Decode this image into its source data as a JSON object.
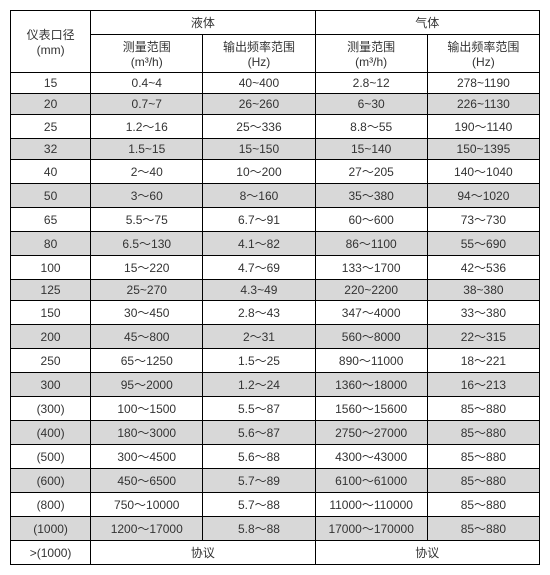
{
  "header": {
    "diameter_label": "仪表口径",
    "diameter_unit": "(mm)",
    "liquid": "液体",
    "gas": "气体",
    "measure_range": "测量范围",
    "measure_unit": "(m³/h)",
    "freq_range": "输出频率范围",
    "freq_unit": "(Hz)"
  },
  "rows": [
    {
      "dia": "15",
      "lr": "0.4~4",
      "lf": "40~400",
      "gr": "2.8~12",
      "gf": "278~1190",
      "alt": false
    },
    {
      "dia": "20",
      "lr": "0.7~7",
      "lf": "26~260",
      "gr": "6~30",
      "gf": "226~1130",
      "alt": true
    },
    {
      "dia": "25",
      "lr": "1.2～16",
      "lf": "25～336",
      "gr": "8.8～55",
      "gf": "190～1140",
      "alt": false
    },
    {
      "dia": "32",
      "lr": "1.5~15",
      "lf": "15~150",
      "gr": "15~140",
      "gf": "150~1395",
      "alt": true
    },
    {
      "dia": "40",
      "lr": "2～40",
      "lf": "10～200",
      "gr": "27～205",
      "gf": "140～1040",
      "alt": false
    },
    {
      "dia": "50",
      "lr": "3～60",
      "lf": "8～160",
      "gr": "35～380",
      "gf": "94～1020",
      "alt": true
    },
    {
      "dia": "65",
      "lr": "5.5～75",
      "lf": "6.7～91",
      "gr": "60～600",
      "gf": "73～730",
      "alt": false
    },
    {
      "dia": "80",
      "lr": "6.5～130",
      "lf": "4.1～82",
      "gr": "86～1100",
      "gf": "55～690",
      "alt": true
    },
    {
      "dia": "100",
      "lr": "15～220",
      "lf": "4.7～69",
      "gr": "133～1700",
      "gf": "42～536",
      "alt": false
    },
    {
      "dia": "125",
      "lr": "25~270",
      "lf": "4.3~49",
      "gr": "220~2200",
      "gf": "38~380",
      "alt": true
    },
    {
      "dia": "150",
      "lr": "30～450",
      "lf": "2.8～43",
      "gr": "347～4000",
      "gf": "33～380",
      "alt": false
    },
    {
      "dia": "200",
      "lr": "45～800",
      "lf": "2～31",
      "gr": "560～8000",
      "gf": "22～315",
      "alt": true
    },
    {
      "dia": "250",
      "lr": "65～1250",
      "lf": "1.5～25",
      "gr": "890～11000",
      "gf": "18～221",
      "alt": false
    },
    {
      "dia": "300",
      "lr": "95～2000",
      "lf": "1.2～24",
      "gr": "1360～18000",
      "gf": "16～213",
      "alt": true
    },
    {
      "dia": "(300)",
      "lr": "100～1500",
      "lf": "5.5～87",
      "gr": "1560～15600",
      "gf": "85～880",
      "alt": false
    },
    {
      "dia": "(400)",
      "lr": "180～3000",
      "lf": "5.6～87",
      "gr": "2750～27000",
      "gf": "85～880",
      "alt": true
    },
    {
      "dia": "(500)",
      "lr": "300～4500",
      "lf": "5.6～88",
      "gr": "4300～43000",
      "gf": "85～880",
      "alt": false
    },
    {
      "dia": "(600)",
      "lr": "450～6500",
      "lf": "5.7～89",
      "gr": "6100～61000",
      "gf": "85～880",
      "alt": true
    },
    {
      "dia": "(800)",
      "lr": "750～10000",
      "lf": "5.7～88",
      "gr": "11000～110000",
      "gf": "85～880",
      "alt": false
    },
    {
      "dia": "(1000)",
      "lr": "1200～17000",
      "lf": "5.8～88",
      "gr": "17000～170000",
      "gf": "85～880",
      "alt": true
    }
  ],
  "footer": {
    "dia": ">(1000)",
    "liquid": "协议",
    "gas": "协议"
  }
}
